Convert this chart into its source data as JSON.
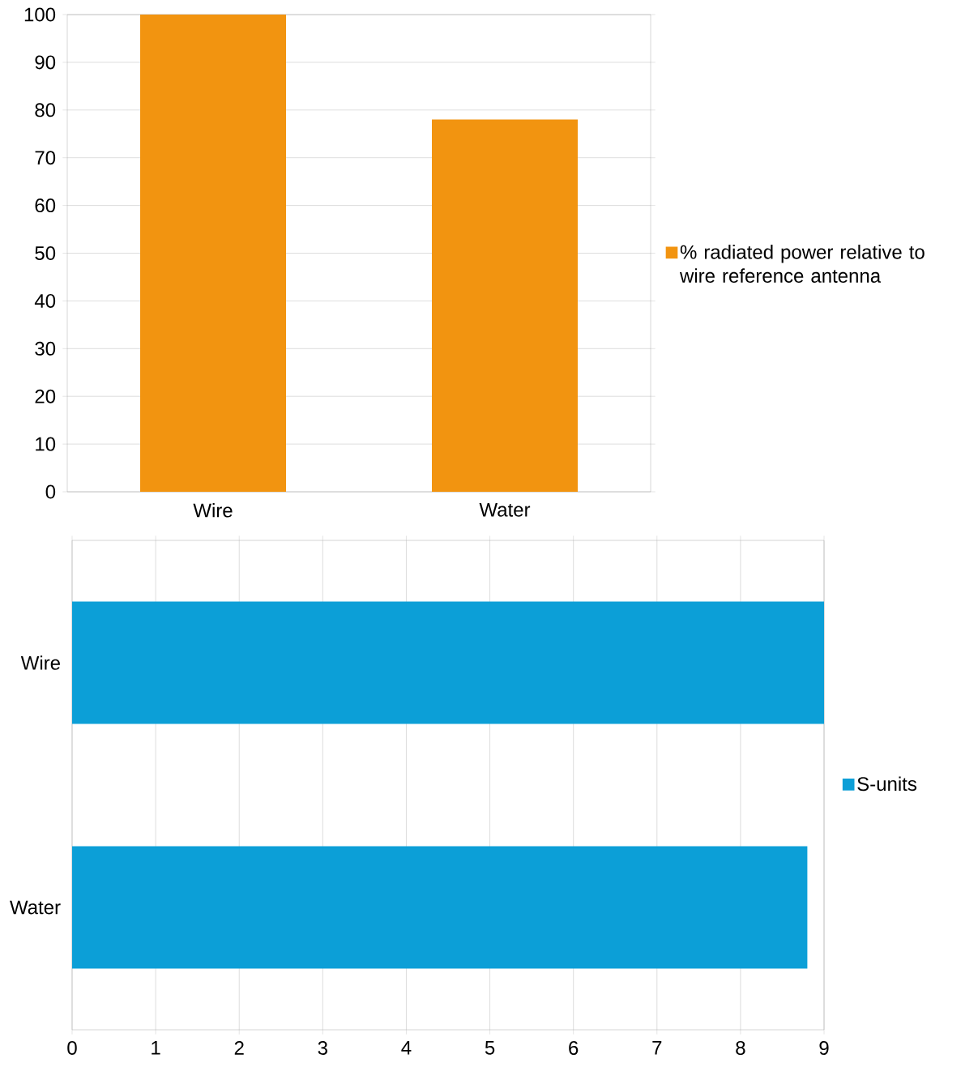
{
  "chart_data": [
    {
      "type": "bar",
      "categories": [
        "Wire",
        "Water"
      ],
      "series": [
        {
          "name": "% radiated power relative to wire reference antenna",
          "color": "#f29410",
          "values": [
            100,
            78
          ]
        }
      ],
      "ylim": [
        0,
        100
      ],
      "yticks": [
        0,
        10,
        20,
        30,
        40,
        50,
        60,
        70,
        80,
        90,
        100
      ],
      "grid": "y",
      "legend": "right"
    },
    {
      "type": "bar",
      "orientation": "horizontal",
      "categories": [
        "Wire",
        "Water"
      ],
      "series": [
        {
          "name": "S-units",
          "color": "#0c9fd7",
          "values": [
            9,
            8.8
          ]
        }
      ],
      "xlim": [
        0,
        9
      ],
      "xticks": [
        0,
        1,
        2,
        3,
        4,
        5,
        6,
        7,
        8,
        9
      ],
      "grid": "x",
      "legend": "right"
    }
  ]
}
